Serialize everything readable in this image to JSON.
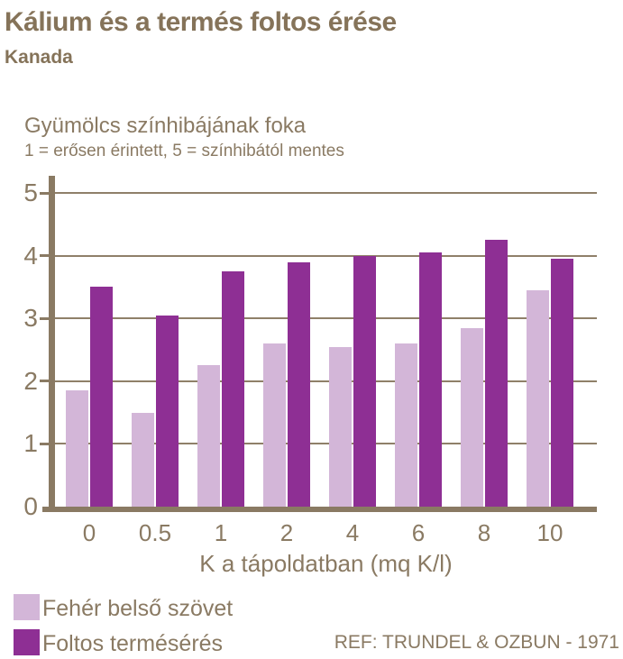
{
  "header": {
    "title": "Kálium és a termés foltos érése",
    "subtitle": "Kanada"
  },
  "chart_data": {
    "type": "bar",
    "title": "Kálium és a termés foltos érése",
    "subtitle": "Kanada",
    "ylabel": "Gyümölcs színhibájának foka",
    "scale_note": "1 = erősen érintett, 5 = színhibától mentes",
    "xlabel": "K a tápoldatban (mq K/l)",
    "categories": [
      "0",
      "0.5",
      "1",
      "2",
      "4",
      "6",
      "8",
      "10"
    ],
    "series": [
      {
        "name": "Fehér belső szövet",
        "color": "#d3b6d8",
        "values": [
          1.85,
          1.5,
          2.25,
          2.6,
          2.55,
          2.6,
          2.85,
          3.45
        ]
      },
      {
        "name": "Foltos termésérés",
        "color": "#8e2f94",
        "values": [
          3.5,
          3.05,
          3.75,
          3.9,
          4.0,
          4.05,
          4.25,
          3.95
        ]
      }
    ],
    "ylim": [
      0,
      5
    ],
    "yticks": [
      0,
      1,
      2,
      3,
      4,
      5
    ],
    "grid": true,
    "legend_position": "bottom-left"
  },
  "footer": {
    "ref": "REF: TRUNDEL & OZBUN - 1971"
  },
  "colors": {
    "title_brown": "#857359",
    "text_brown": "#8a7a63",
    "axis_brown": "#8a7a63",
    "light_purple": "#d3b6d8",
    "dark_purple": "#8e2f94",
    "background": "#ffffff"
  }
}
